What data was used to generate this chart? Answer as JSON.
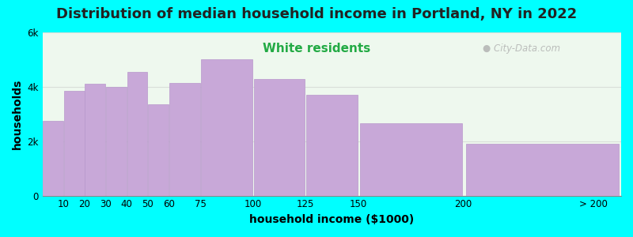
{
  "title": "Distribution of median household income in Portland, NY in 2022",
  "subtitle": "White residents",
  "xlabel": "household income ($1000)",
  "ylabel": "households",
  "bg_outer": "#00FFFF",
  "bg_inner": "#eef8ee",
  "bar_color": "#c8a8d8",
  "bar_edge_color": "#b898cc",
  "bar_left_edges": [
    0,
    10,
    20,
    30,
    40,
    50,
    60,
    75,
    100,
    125,
    150,
    200
  ],
  "bar_widths": [
    10,
    10,
    10,
    10,
    10,
    10,
    15,
    25,
    25,
    25,
    50,
    75
  ],
  "values": [
    2750,
    3850,
    4100,
    4000,
    4550,
    3350,
    4150,
    5000,
    4300,
    3700,
    2650,
    1900
  ],
  "xlim": [
    0,
    275
  ],
  "ylim": [
    0,
    6000
  ],
  "yticks": [
    0,
    2000,
    4000,
    6000
  ],
  "ytick_labels": [
    "0",
    "2k",
    "4k",
    "6k"
  ],
  "xtick_positions": [
    10,
    20,
    30,
    40,
    50,
    60,
    75,
    100,
    125,
    150,
    200,
    262
  ],
  "xtick_labels": [
    "10",
    "20",
    "30",
    "40",
    "50",
    "60",
    "75",
    "100",
    "125",
    "150",
    "200",
    "> 200"
  ],
  "title_fontsize": 13,
  "subtitle_fontsize": 11,
  "subtitle_color": "#22aa44",
  "axis_label_fontsize": 10,
  "tick_fontsize": 8.5,
  "watermark_text": "City-Data.com"
}
